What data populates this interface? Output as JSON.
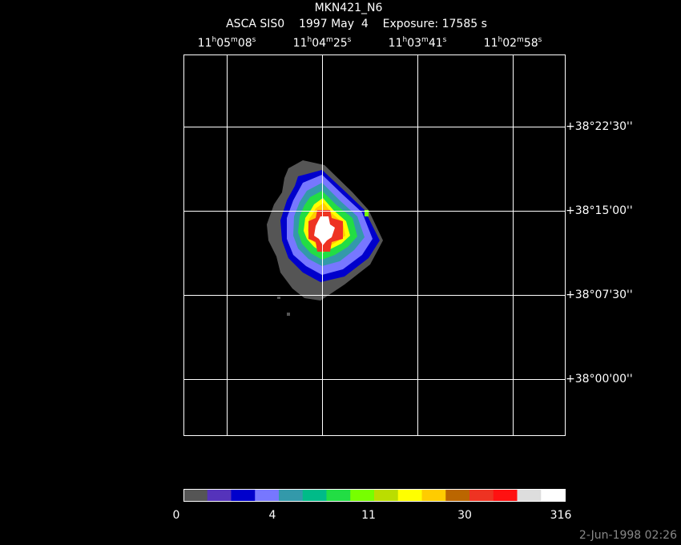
{
  "title": "MKN421_N6",
  "subtitle": "ASCA SIS0    1997 May  4    Exposure: 17585 s",
  "ra_labels": [
    "11h05m08s",
    "11h04m25s",
    "11h03m41s",
    "11h02m58s"
  ],
  "dec_labels": [
    "+38°22'30''",
    "+38°15'00''",
    "+38°07'30''",
    "+38°00'00''"
  ],
  "colorbar": {
    "colors": [
      "#555555",
      "#5533bb",
      "#0000cc",
      "#7777ff",
      "#3399aa",
      "#00bb88",
      "#22dd44",
      "#77ff00",
      "#bbdd00",
      "#ffff00",
      "#ffcc00",
      "#bb6600",
      "#ee3322",
      "#ff1111",
      "#dddddd",
      "#ffffff"
    ],
    "labels": [
      "0",
      "4",
      "11",
      "30",
      "316"
    ]
  },
  "timestamp": "2-Jun-1998 02:26"
}
